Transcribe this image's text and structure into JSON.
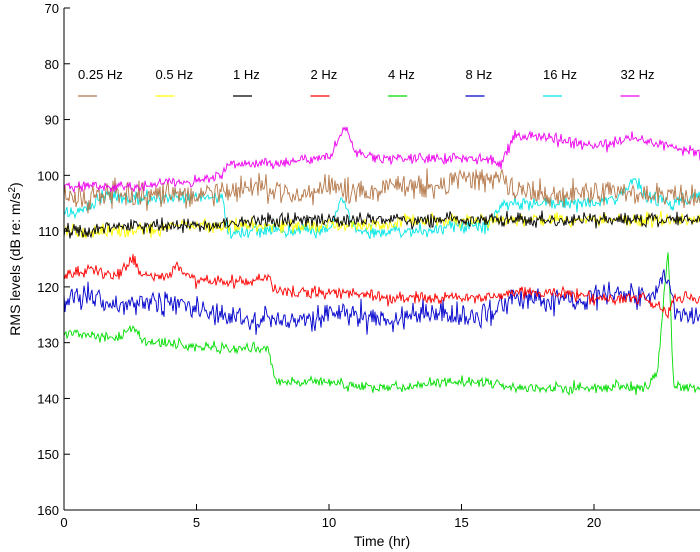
{
  "chart_data": {
    "type": "line",
    "xlabel": "Time (hr)",
    "ylabel_main": "RMS levels (dB re: m/s",
    "ylabel_sup": "2",
    "ylabel_tail": ")",
    "xlim": [
      0,
      24
    ],
    "ylim": [
      160,
      70
    ],
    "y_reversed": true,
    "grid": false,
    "legend_position": "top",
    "x_ticks": [
      0,
      5,
      10,
      15,
      20
    ],
    "y_ticks": [
      70,
      80,
      90,
      100,
      110,
      120,
      130,
      140,
      150,
      160
    ],
    "series": [
      {
        "name": "0.25 Hz",
        "color": "#b5784a",
        "points": [
          [
            0,
            104
          ],
          [
            1,
            104
          ],
          [
            2,
            103
          ],
          [
            3,
            104
          ],
          [
            4,
            103
          ],
          [
            5,
            104
          ],
          [
            6,
            103
          ],
          [
            7,
            102
          ],
          [
            8,
            103
          ],
          [
            9,
            103
          ],
          [
            10,
            102
          ],
          [
            11,
            103
          ],
          [
            12,
            102
          ],
          [
            13,
            102
          ],
          [
            14,
            102
          ],
          [
            15,
            101
          ],
          [
            16,
            101
          ],
          [
            16.5,
            100
          ],
          [
            17,
            103
          ],
          [
            18,
            103
          ],
          [
            19,
            103
          ],
          [
            20,
            103
          ],
          [
            21,
            103
          ],
          [
            22,
            104
          ],
          [
            23,
            103
          ],
          [
            24,
            104
          ]
        ]
      },
      {
        "name": "0.5 Hz",
        "color": "#ffff00",
        "points": [
          [
            0,
            110
          ],
          [
            1,
            110
          ],
          [
            2,
            110
          ],
          [
            3,
            110
          ],
          [
            4,
            109
          ],
          [
            5,
            109
          ],
          [
            6,
            109
          ],
          [
            7,
            109
          ],
          [
            8,
            109
          ],
          [
            9,
            109
          ],
          [
            10,
            109
          ],
          [
            11,
            109
          ],
          [
            12,
            109
          ],
          [
            13,
            108
          ],
          [
            14,
            108
          ],
          [
            15,
            108
          ],
          [
            16,
            108
          ],
          [
            17,
            108
          ],
          [
            18,
            108
          ],
          [
            19,
            108
          ],
          [
            20,
            108
          ],
          [
            21,
            108
          ],
          [
            22,
            108
          ],
          [
            23,
            108
          ],
          [
            24,
            108
          ]
        ]
      },
      {
        "name": "1 Hz",
        "color": "#000000",
        "points": [
          [
            0,
            110
          ],
          [
            1,
            110
          ],
          [
            2,
            109
          ],
          [
            3,
            109
          ],
          [
            4,
            109
          ],
          [
            5,
            109
          ],
          [
            6,
            109
          ],
          [
            7,
            108
          ],
          [
            8,
            108
          ],
          [
            9,
            108
          ],
          [
            10,
            108
          ],
          [
            11,
            108
          ],
          [
            12,
            108
          ],
          [
            13,
            108
          ],
          [
            14,
            108
          ],
          [
            15,
            108
          ],
          [
            16,
            108
          ],
          [
            17,
            108
          ],
          [
            18,
            108
          ],
          [
            19,
            108
          ],
          [
            20,
            108
          ],
          [
            21,
            108
          ],
          [
            22,
            108
          ],
          [
            23,
            108
          ],
          [
            24,
            108
          ]
        ]
      },
      {
        "name": "2 Hz",
        "color": "#ff0000",
        "points": [
          [
            0,
            118
          ],
          [
            1,
            117
          ],
          [
            2,
            118
          ],
          [
            2.6,
            115
          ],
          [
            3,
            118
          ],
          [
            4,
            118
          ],
          [
            4.2,
            116
          ],
          [
            5,
            119
          ],
          [
            6,
            119
          ],
          [
            7,
            119
          ],
          [
            7.7,
            118
          ],
          [
            8,
            121
          ],
          [
            9,
            121
          ],
          [
            10,
            121
          ],
          [
            11,
            121
          ],
          [
            12,
            122
          ],
          [
            13,
            122
          ],
          [
            14,
            122
          ],
          [
            15,
            122
          ],
          [
            16,
            122
          ],
          [
            17,
            121
          ],
          [
            18,
            121
          ],
          [
            19,
            121
          ],
          [
            20,
            122
          ],
          [
            21,
            122
          ],
          [
            22,
            122
          ],
          [
            22.8,
            125
          ],
          [
            23,
            122
          ],
          [
            24,
            122
          ]
        ]
      },
      {
        "name": "4 Hz",
        "color": "#00dd00",
        "points": [
          [
            0,
            128
          ],
          [
            1,
            129
          ],
          [
            2,
            129
          ],
          [
            2.6,
            127
          ],
          [
            3,
            130
          ],
          [
            4,
            130
          ],
          [
            5,
            131
          ],
          [
            6,
            131
          ],
          [
            7,
            131
          ],
          [
            7.7,
            131
          ],
          [
            8,
            137
          ],
          [
            9,
            137
          ],
          [
            10,
            137
          ],
          [
            11,
            138
          ],
          [
            12,
            138
          ],
          [
            13,
            138
          ],
          [
            14,
            137
          ],
          [
            15,
            137
          ],
          [
            16,
            137
          ],
          [
            17,
            138
          ],
          [
            18,
            138
          ],
          [
            19,
            138
          ],
          [
            20,
            138
          ],
          [
            21,
            138
          ],
          [
            22,
            138
          ],
          [
            22.4,
            135
          ],
          [
            22.8,
            113
          ],
          [
            23,
            138
          ],
          [
            24,
            138
          ]
        ]
      },
      {
        "name": "8 Hz",
        "color": "#0000cc",
        "points": [
          [
            0,
            122
          ],
          [
            1,
            122
          ],
          [
            2,
            123
          ],
          [
            3,
            123
          ],
          [
            4,
            123
          ],
          [
            5,
            124
          ],
          [
            6,
            125
          ],
          [
            7,
            126
          ],
          [
            8,
            126
          ],
          [
            9,
            126
          ],
          [
            10,
            125
          ],
          [
            11,
            125
          ],
          [
            12,
            126
          ],
          [
            13,
            125
          ],
          [
            14,
            125
          ],
          [
            15,
            125
          ],
          [
            16,
            125
          ],
          [
            16.5,
            123
          ],
          [
            17,
            122
          ],
          [
            18,
            122
          ],
          [
            19,
            122
          ],
          [
            20,
            122
          ],
          [
            21,
            121
          ],
          [
            22,
            122
          ],
          [
            22.8,
            118
          ],
          [
            23,
            124
          ],
          [
            24,
            126
          ]
        ]
      },
      {
        "name": "16 Hz",
        "color": "#00e5e5",
        "points": [
          [
            0,
            107
          ],
          [
            1,
            106
          ],
          [
            1.2,
            104
          ],
          [
            2,
            104
          ],
          [
            3,
            104
          ],
          [
            4,
            104
          ],
          [
            5,
            104
          ],
          [
            6,
            104
          ],
          [
            6.2,
            110
          ],
          [
            7,
            110
          ],
          [
            8,
            110
          ],
          [
            9,
            110
          ],
          [
            10,
            110
          ],
          [
            10.5,
            104
          ],
          [
            11,
            110
          ],
          [
            12,
            110
          ],
          [
            13,
            110
          ],
          [
            14,
            110
          ],
          [
            15,
            109
          ],
          [
            16,
            109
          ],
          [
            16.5,
            105
          ],
          [
            17,
            105
          ],
          [
            18,
            105
          ],
          [
            19,
            105
          ],
          [
            20,
            105
          ],
          [
            21,
            104
          ],
          [
            21.5,
            101
          ],
          [
            22,
            104
          ],
          [
            23,
            105
          ],
          [
            24,
            104
          ]
        ]
      },
      {
        "name": "32 Hz",
        "color": "#ee00ee",
        "points": [
          [
            0,
            102
          ],
          [
            1,
            102
          ],
          [
            2,
            102
          ],
          [
            3,
            102
          ],
          [
            4,
            101
          ],
          [
            5,
            101
          ],
          [
            6,
            100
          ],
          [
            6.2,
            98
          ],
          [
            7,
            98
          ],
          [
            8,
            98
          ],
          [
            9,
            97
          ],
          [
            10,
            97
          ],
          [
            10.6,
            91
          ],
          [
            11,
            96
          ],
          [
            12,
            97
          ],
          [
            13,
            97
          ],
          [
            14,
            97
          ],
          [
            15,
            97
          ],
          [
            16,
            97
          ],
          [
            16.5,
            98
          ],
          [
            17,
            93
          ],
          [
            18,
            93
          ],
          [
            19,
            94
          ],
          [
            20,
            95
          ],
          [
            21,
            94
          ],
          [
            21.5,
            93
          ],
          [
            22,
            94
          ],
          [
            23,
            95
          ],
          [
            24,
            96
          ]
        ]
      }
    ]
  }
}
